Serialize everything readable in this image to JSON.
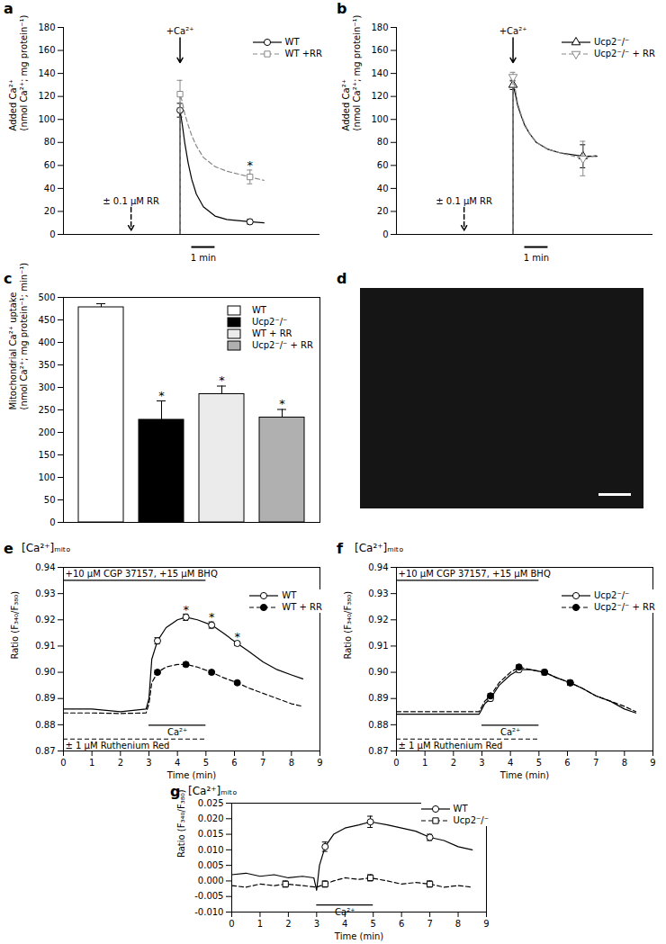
{
  "chart_data": [
    {
      "panel": "a",
      "type": "line",
      "ylabel": [
        "Added Ca²⁺",
        "(nmol Ca²⁺; mg protein⁻¹)"
      ],
      "xlim": [
        0,
        11
      ],
      "xticks": [],
      "ylim": [
        0,
        180
      ],
      "yticks": [
        0,
        20,
        40,
        60,
        80,
        100,
        120,
        140,
        160,
        180
      ],
      "tick_labels": "y",
      "legend": "top-right",
      "asterisk": "*",
      "annotations": [
        {
          "text": "+Ca²⁺",
          "x": 5,
          "position": "top",
          "line_style": "solid"
        },
        {
          "text": "± 0.1 µM RR",
          "x": 2.9,
          "position": "bottom",
          "line_style": "dashed"
        }
      ],
      "scale_bar": {
        "label": "1 min",
        "length": 1
      },
      "series": [
        {
          "name": "WT",
          "color": "#000000",
          "line_style": "solid",
          "marker": "circle-open",
          "x": [
            0,
            5,
            5,
            5.1,
            5.2,
            5.35,
            5.5,
            5.7,
            6,
            6.5,
            7,
            8,
            8.6
          ],
          "values": [
            0,
            0,
            108,
            95,
            80,
            62,
            48,
            35,
            24,
            16,
            13,
            11,
            10
          ],
          "marker_x": [
            5,
            8
          ],
          "errors": [
            6,
            2
          ]
        },
        {
          "name": "WT +RR",
          "color": "#888888",
          "line_style": "dashed",
          "marker": "square-open",
          "x": [
            0,
            5,
            5,
            5.1,
            5.2,
            5.35,
            5.5,
            5.7,
            6,
            6.5,
            7,
            8,
            8.6
          ],
          "values": [
            0,
            0,
            122,
            115,
            105,
            95,
            86,
            77,
            67,
            59,
            55,
            50,
            47
          ],
          "marker_x": [
            5,
            8
          ],
          "errors": [
            12,
            6
          ],
          "asterisk_x": [
            8
          ]
        }
      ]
    },
    {
      "panel": "b",
      "type": "line",
      "ylabel": [
        "Added Ca²⁺",
        "(nmol Ca²⁺; mg protein⁻¹)"
      ],
      "xlim": [
        0,
        11
      ],
      "xticks": [],
      "ylim": [
        0,
        180
      ],
      "yticks": [
        0,
        20,
        40,
        60,
        80,
        100,
        120,
        140,
        160,
        180
      ],
      "tick_labels": "y",
      "legend": "top-right",
      "annotations": [
        {
          "text": "+Ca²⁺",
          "x": 5,
          "position": "top",
          "line_style": "solid"
        },
        {
          "text": "± 0.1 µM RR",
          "x": 2.9,
          "position": "bottom",
          "line_style": "dashed"
        }
      ],
      "scale_bar": {
        "label": "1 min",
        "length": 1
      },
      "series": [
        {
          "name": "Ucp2⁻/⁻",
          "color": "#000000",
          "line_style": "solid",
          "marker": "triangle-open",
          "x": [
            0,
            5,
            5,
            5.1,
            5.2,
            5.35,
            5.5,
            5.7,
            6,
            6.5,
            7,
            8,
            8.6
          ],
          "values": [
            0,
            0,
            130,
            122,
            112,
            103,
            95,
            88,
            80,
            74,
            71,
            68,
            68
          ],
          "marker_x": [
            5,
            8
          ],
          "errors": [
            4,
            10
          ]
        },
        {
          "name": "Ucp2⁻/⁻ + RR",
          "color": "#888888",
          "line_style": "dashed",
          "marker": "triangle-down-open",
          "x": [
            0,
            5,
            5,
            5.1,
            5.2,
            5.35,
            5.5,
            5.7,
            6,
            6.5,
            7,
            8,
            8.6
          ],
          "values": [
            0,
            0,
            137,
            126,
            114,
            104,
            96,
            88,
            80,
            74,
            71,
            66,
            69
          ],
          "marker_x": [
            5,
            8
          ],
          "errors": [
            4,
            15
          ]
        }
      ]
    },
    {
      "panel": "c",
      "type": "bar",
      "ylabel": [
        "Mitochondrial Ca²⁺ uptake",
        "(nmol Ca²⁺; mg protein⁻¹; min⁻¹)"
      ],
      "categories": [
        "WT",
        "Ucp2⁻/⁻",
        "WT + RR",
        "Ucp2⁻/⁻ + RR"
      ],
      "values": [
        478,
        228,
        285,
        233
      ],
      "errors": [
        8,
        42,
        18,
        18
      ],
      "colors": [
        "#ffffff",
        "#000000",
        "#ebebeb",
        "#b0b0b0"
      ],
      "significant": [
        false,
        true,
        true,
        true
      ],
      "asterisk": "*",
      "ylim": [
        0,
        500
      ],
      "yticks": [
        0,
        50,
        100,
        150,
        200,
        250,
        300,
        350,
        400,
        450,
        500
      ],
      "tick_labels": "y",
      "legend": "top-right"
    },
    {
      "panel": "d",
      "type": "image"
    },
    {
      "panel": "e",
      "type": "line",
      "title": "[Ca²⁺]ₘᵢₜₒ",
      "xlabel": "Time (min)",
      "ylabel": [
        "Ratio (F₃₄₀/F₃₈₀)"
      ],
      "xlim": [
        0,
        9
      ],
      "xticks": [
        0,
        1,
        2,
        3,
        4,
        5,
        6,
        7,
        8,
        9
      ],
      "ylim": [
        0.87,
        0.94
      ],
      "yticks": [
        0.87,
        0.88,
        0.89,
        {
          "value": 0.9,
          "label": "0.90"
        },
        0.91,
        0.92,
        0.93,
        0.94
      ],
      "legend": "top-right",
      "asterisk": "*",
      "treatments": [
        {
          "text": "+10 µM CGP 37157, +15 µM BHQ",
          "x1": 0,
          "x2": 5,
          "position": "top",
          "line_style": "solid"
        },
        {
          "text": "Ca²⁺",
          "x1": 3,
          "x2": 5,
          "position": "bottom",
          "line_style": "solid"
        },
        {
          "text": "± 1 µM Ruthenium Red",
          "x1": 0,
          "x2": 5,
          "position": "lowest",
          "line_style": "dashed"
        }
      ],
      "series": [
        {
          "name": "WT",
          "color": "#000000",
          "line_style": "solid",
          "marker": "circle-open",
          "x": [
            0,
            1,
            2,
            2.9,
            3.0,
            3.1,
            3.3,
            3.6,
            4,
            4.3,
            4.7,
            5.2,
            5.6,
            6.1,
            6.5,
            7,
            7.5,
            8,
            8.4
          ],
          "values": [
            0.886,
            0.886,
            0.885,
            0.886,
            0.89,
            0.905,
            0.912,
            0.917,
            0.92,
            0.921,
            0.92,
            0.918,
            0.915,
            0.911,
            0.908,
            0.904,
            0.901,
            0.899,
            0.8975
          ],
          "marker_x": [
            3.3,
            4.3,
            5.2,
            6.1
          ],
          "errors": [
            0.0012,
            0.0012,
            0.0012,
            0.0008
          ],
          "asterisk_x": [
            4.3,
            5.2,
            6.1
          ]
        },
        {
          "name": "WT + RR",
          "color": "#000000",
          "line_style": "dashed",
          "marker": "circle",
          "x": [
            0,
            1,
            2,
            2.9,
            3.0,
            3.1,
            3.3,
            3.6,
            4,
            4.3,
            4.7,
            5.2,
            5.6,
            6.1,
            6.5,
            7,
            7.5,
            8,
            8.4
          ],
          "values": [
            0.8845,
            0.8845,
            0.8843,
            0.8845,
            0.888,
            0.896,
            0.9,
            0.902,
            0.903,
            0.903,
            0.902,
            0.9,
            0.898,
            0.896,
            0.894,
            0.892,
            0.89,
            0.888,
            0.887
          ],
          "marker_x": [
            3.3,
            4.3,
            5.2,
            6.1
          ],
          "errors": [
            0.0008,
            0.0008,
            0.0008,
            0.0006
          ]
        }
      ]
    },
    {
      "panel": "f",
      "type": "line",
      "title": "[Ca²⁺]ₘᵢₜₒ",
      "xlabel": "Time (min)",
      "ylabel": [
        "Ratio (F₃₄₀/F₃₈₀)"
      ],
      "xlim": [
        0,
        9
      ],
      "xticks": [
        0,
        1,
        2,
        3,
        4,
        5,
        6,
        7,
        8,
        9
      ],
      "ylim": [
        0.87,
        0.94
      ],
      "yticks": [
        0.87,
        0.88,
        0.89,
        {
          "value": 0.9,
          "label": "0.90"
        },
        0.91,
        0.92,
        0.93,
        0.94
      ],
      "legend": "top-right",
      "treatments": [
        {
          "text": "+10 µM CGP 37157, +15 µM BHQ",
          "x1": 0,
          "x2": 5,
          "position": "top",
          "line_style": "solid"
        },
        {
          "text": "Ca²⁺",
          "x1": 3,
          "x2": 5,
          "position": "bottom",
          "line_style": "solid"
        },
        {
          "text": "± 1 µM Ruthenium Red",
          "x1": 0,
          "x2": 5,
          "position": "lowest",
          "line_style": "dashed"
        }
      ],
      "series": [
        {
          "name": "Ucp2⁻/⁻",
          "color": "#000000",
          "line_style": "solid",
          "marker": "circle-open",
          "x": [
            0,
            1,
            2,
            2.9,
            3.0,
            3.1,
            3.3,
            3.6,
            4,
            4.3,
            4.7,
            5.2,
            5.6,
            6.1,
            6.5,
            7,
            7.5,
            8,
            8.4
          ],
          "values": [
            0.884,
            0.884,
            0.884,
            0.884,
            0.886,
            0.888,
            0.89,
            0.895,
            0.899,
            0.901,
            0.901,
            0.9,
            0.898,
            0.896,
            0.894,
            0.891,
            0.889,
            0.886,
            0.8845
          ],
          "marker_x": [
            3.3,
            4.3,
            5.2,
            6.1
          ],
          "errors": [
            0.001,
            0.001,
            0.001,
            0.001
          ]
        },
        {
          "name": "Ucp2⁻/⁻ + RR",
          "color": "#000000",
          "line_style": "dashed",
          "marker": "circle",
          "x": [
            0,
            1,
            2,
            2.9,
            3.0,
            3.1,
            3.3,
            3.6,
            4,
            4.3,
            4.7,
            5.2,
            5.6,
            6.1,
            6.5,
            7,
            7.5,
            8,
            8.4
          ],
          "values": [
            0.885,
            0.885,
            0.885,
            0.885,
            0.887,
            0.889,
            0.891,
            0.896,
            0.9,
            0.902,
            0.901,
            0.9,
            0.898,
            0.896,
            0.894,
            0.891,
            0.889,
            0.887,
            0.885
          ],
          "marker_x": [
            3.3,
            4.3,
            5.2,
            6.1
          ],
          "errors": [
            0.0008,
            0.0008,
            0.0008,
            0.0008
          ]
        }
      ]
    },
    {
      "panel": "g",
      "type": "line",
      "title": "[Ca²⁺]ₘᵢₜₒ",
      "xlabel": "Time (min)",
      "ylabel": [
        "Ratio (F₃₄₀/F₃₈₀)"
      ],
      "xlim": [
        0,
        9
      ],
      "xticks": [
        0,
        1,
        2,
        3,
        4,
        5,
        6,
        7,
        8,
        9
      ],
      "ylim": [
        -0.01,
        0.025
      ],
      "yticks": [
        {
          "value": -0.01,
          "label": "-0.010"
        },
        -0.005,
        {
          "value": 0,
          "label": "0.000"
        },
        0.005,
        {
          "value": 0.01,
          "label": "0.010"
        },
        0.015,
        {
          "value": 0.02,
          "label": "0.020"
        },
        0.025
      ],
      "legend": "top-right",
      "treatments": [
        {
          "text": "Ca²⁺",
          "x1": 3,
          "x2": 5,
          "position": "lowest",
          "line_style": "solid"
        }
      ],
      "series": [
        {
          "name": "WT",
          "color": "#000000",
          "line_style": "solid",
          "marker": "circle-open",
          "x": [
            0,
            0.5,
            1,
            1.5,
            2,
            2.5,
            2.9,
            3,
            3.1,
            3.3,
            3.6,
            4,
            4.5,
            4.9,
            5.5,
            6,
            6.5,
            7,
            7.5,
            8,
            8.5
          ],
          "values": [
            0.002,
            0.0025,
            0.0015,
            0.002,
            0.001,
            0.0015,
            0.001,
            -0.003,
            0.005,
            0.011,
            0.015,
            0.017,
            0.018,
            0.019,
            0.018,
            0.017,
            0.016,
            0.014,
            0.013,
            0.011,
            0.01
          ],
          "marker_x": [
            3.3,
            4.9,
            7
          ],
          "errors": [
            0.0015,
            0.0018,
            0.001
          ]
        },
        {
          "name": "Ucp2⁻/⁻",
          "color": "#000000",
          "line_style": "dashed",
          "marker": "square-open",
          "x": [
            0,
            0.5,
            1,
            1.5,
            1.9,
            2.5,
            3,
            3.3,
            3.6,
            4,
            4.5,
            4.9,
            5.5,
            6,
            6.5,
            7,
            7.5,
            8,
            8.5
          ],
          "values": [
            -0.0015,
            -0.002,
            -0.001,
            -0.0015,
            -0.001,
            -0.0015,
            -0.002,
            -0.001,
            0,
            0.001,
            0.0005,
            0.001,
            0,
            -0.001,
            -0.0005,
            -0.001,
            -0.002,
            -0.0015,
            -0.002
          ],
          "marker_x": [
            1.9,
            3.3,
            4.9,
            7
          ],
          "errors": [
            0.001,
            0.001,
            0.001,
            0.001
          ]
        }
      ]
    }
  ]
}
